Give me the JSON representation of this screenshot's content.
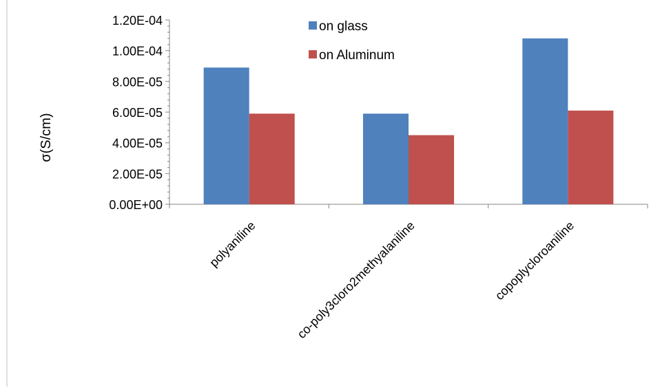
{
  "chart_data": {
    "type": "bar",
    "title": "",
    "xlabel": "",
    "ylabel": "σ(S/cm)",
    "ylim": [
      0,
      0.00012
    ],
    "y_ticks": [
      {
        "value": 0,
        "label": "0.00E+00"
      },
      {
        "value": 2e-05,
        "label": "2.00E-05"
      },
      {
        "value": 4e-05,
        "label": "4.00E-05"
      },
      {
        "value": 6e-05,
        "label": "6.00E-05"
      },
      {
        "value": 8e-05,
        "label": "8.00E-05"
      },
      {
        "value": 0.0001,
        "label": "1.00E-04"
      },
      {
        "value": 0.00012,
        "label": "1.20E-04"
      }
    ],
    "categories": [
      "polyaniline",
      "co-poly3cloro2methyalaniline",
      "copoplycloroaniline"
    ],
    "series": [
      {
        "name": "on glass",
        "color": "#4F81BD",
        "values": [
          8.9e-05,
          5.9e-05,
          0.000108
        ]
      },
      {
        "name": "on Aluminum",
        "color": "#C0504D",
        "values": [
          5.9e-05,
          4.5e-05,
          6.1e-05
        ]
      }
    ],
    "legend_position": "top-center",
    "grid": false
  }
}
